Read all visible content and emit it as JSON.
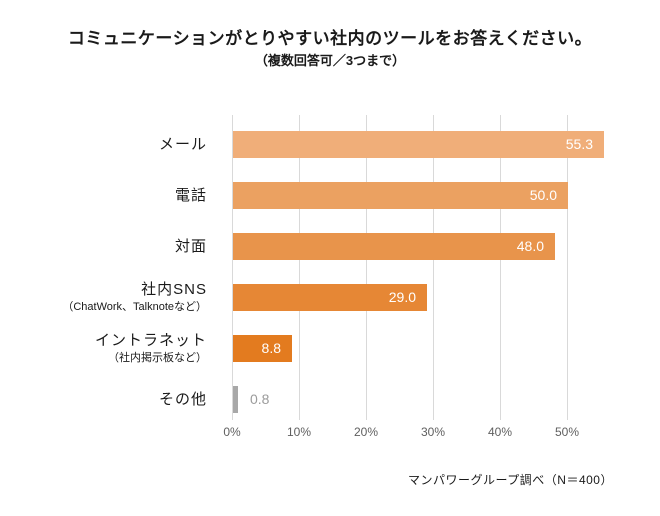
{
  "title": "コミュニケーションがとりやすい社内のツールをお答えください。",
  "subtitle": "（複数回答可／3つまで）",
  "source": "マンパワーグループ調べ（N＝400）",
  "chart_data": {
    "type": "bar",
    "orientation": "horizontal",
    "title": "コミュニケーションがとりやすい社内のツールをお答えください。",
    "subtitle": "（複数回答可／3つまで）",
    "categories": [
      "メール",
      "電話",
      "対面",
      "社内SNS",
      "イントラネット",
      "その他"
    ],
    "category_sublabels": [
      "",
      "",
      "",
      "（ChatWork、Talknoteなど）",
      "（社内掲示板など）",
      ""
    ],
    "values": [
      55.3,
      50.0,
      48.0,
      29.0,
      8.8,
      0.8
    ],
    "value_labels": [
      "55.3",
      "50.0",
      "48.0",
      "29.0",
      "8.8",
      "0.8"
    ],
    "bar_colors": [
      "#F0AE79",
      "#EBA161",
      "#E8944B",
      "#E68735",
      "#E37B1F",
      "#A8A8A8"
    ],
    "x_ticks": [
      "0%",
      "10%",
      "20%",
      "30%",
      "40%",
      "50%"
    ],
    "x_tick_values": [
      0,
      10,
      20,
      30,
      40,
      50
    ],
    "xlim": [
      0,
      57
    ],
    "xlabel": "",
    "ylabel": "",
    "grid": true,
    "gridline_color": "#d9d9d9",
    "axis_text_color": "#5f5f5f",
    "value_label_inside_color": "#ffffff",
    "value_label_outside_color": "#9b9b9b",
    "legend": false,
    "source_note": "マンパワーグループ調べ（N＝400）"
  }
}
